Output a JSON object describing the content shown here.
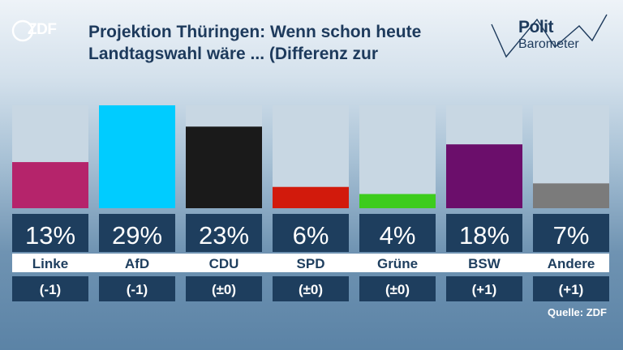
{
  "header": {
    "logo_text": "ZDF",
    "title_line1": "Projektion Thüringen: Wenn schon heute",
    "title_line2": "Landtagswahl wäre ... (Differenz zur",
    "brand_polit": "Polit",
    "brand_barometer": "Barometer"
  },
  "source": "Quelle: ZDF",
  "chart_data": {
    "type": "bar",
    "title": "Projektion Thüringen: Wenn schon heute Landtagswahl wäre ... (Differenz zur",
    "categories": [
      "Linke",
      "AfD",
      "CDU",
      "SPD",
      "Grüne",
      "BSW",
      "Andere"
    ],
    "values": [
      13,
      29,
      23,
      6,
      4,
      18,
      7
    ],
    "value_labels": [
      "13%",
      "29%",
      "23%",
      "6%",
      "4%",
      "18%",
      "7%"
    ],
    "differences": [
      "(-1)",
      "(-1)",
      "(±0)",
      "(±0)",
      "(±0)",
      "(+1)",
      "(+1)"
    ],
    "colors": [
      "#b5246b",
      "#00ccff",
      "#1a1a1a",
      "#d21a0c",
      "#3dcc1d",
      "#6b0e6b",
      "#7b7b7b"
    ],
    "ylim": [
      0,
      29
    ],
    "grid": false
  }
}
